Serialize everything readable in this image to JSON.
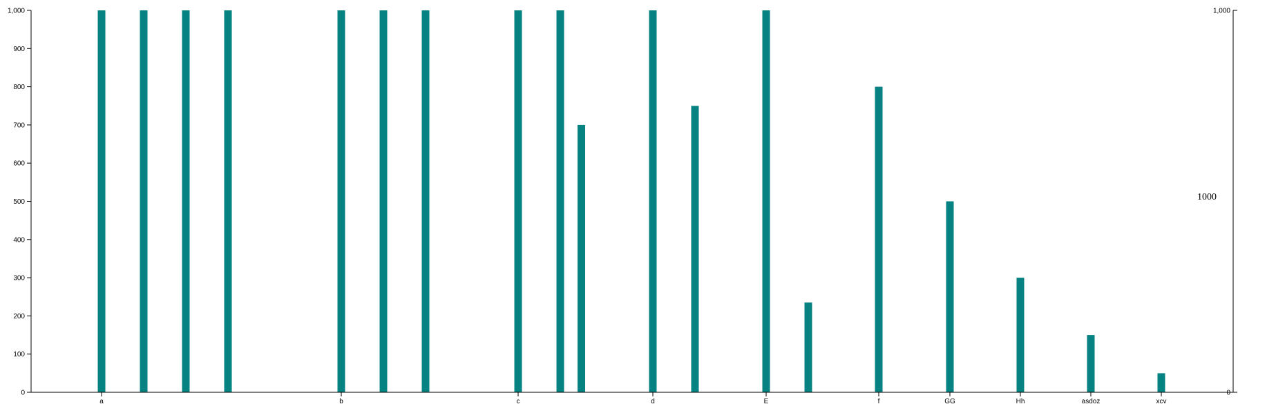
{
  "chart_data": {
    "type": "bar",
    "categories": [
      "a",
      "b",
      "c",
      "d",
      "E",
      "f",
      "GG",
      "Hh",
      "asdoz",
      "xcv"
    ],
    "bar_values": [
      [
        1000,
        0,
        1000,
        0,
        1000,
        0,
        1000,
        0
      ],
      [
        1000,
        0,
        1000,
        0,
        1000
      ],
      [
        1000,
        0,
        1000,
        700
      ],
      [
        1000,
        0,
        750
      ],
      [
        1000,
        0,
        235
      ],
      [
        800
      ],
      [
        500
      ],
      [
        300
      ],
      [
        150
      ],
      [
        50
      ]
    ],
    "left_axis": {
      "ylim": [
        0,
        1000
      ],
      "ticks": [
        "0",
        "100",
        "200",
        "300",
        "400",
        "500",
        "600",
        "700",
        "800",
        "900",
        "1,000"
      ]
    },
    "right_axis": {
      "ylim": [
        0,
        1000
      ],
      "ticks": [
        "0",
        "1,000"
      ]
    },
    "center_label": "1000",
    "color": "#078282"
  }
}
